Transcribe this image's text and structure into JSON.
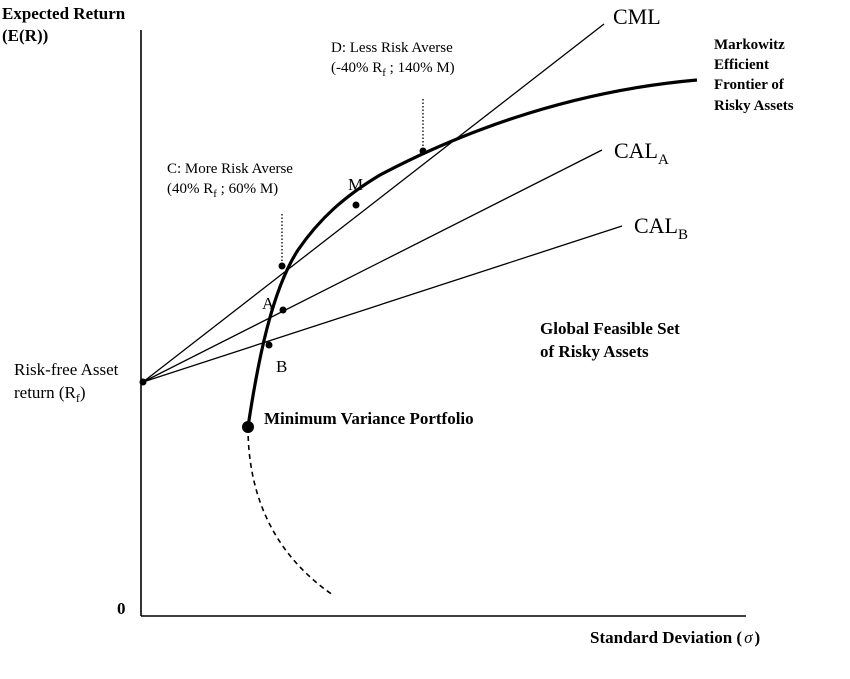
{
  "axes": {
    "y_label_line1": "Expected Return",
    "y_label_line2": "(E(R))",
    "x_label_main": "Standard Deviation (",
    "x_label_sigma": "σ",
    "x_label_close": ")",
    "origin": "0"
  },
  "lines": {
    "cml": "CML",
    "cal_a_main": "CAL",
    "cal_a_sub": "A",
    "cal_b_main": "CAL",
    "cal_b_sub": "B"
  },
  "frontier": {
    "line1": "Markowitz",
    "line2": "Efficient",
    "line3": "Frontier of",
    "line4": "Risky Assets"
  },
  "risk_free": {
    "line1": "Risk-free Asset",
    "line2_main": "return (R",
    "line2_sub": "f",
    "line2_close": ")"
  },
  "points": {
    "a": "A",
    "b": "B",
    "m": "M",
    "mvp": "Minimum Variance Portfolio"
  },
  "annotation_c": {
    "line1": "C: More Risk Averse",
    "line2_a": "(40% R",
    "line2_sub": "f",
    "line2_b": " ; 60% M)"
  },
  "annotation_d": {
    "line1": "D: Less Risk Averse",
    "line2_a": "(-40% R",
    "line2_sub": "f",
    "line2_b": " ; 140% M)"
  },
  "feasible_set": {
    "line1": "Global Feasible Set",
    "line2": "of Risky Assets"
  }
}
